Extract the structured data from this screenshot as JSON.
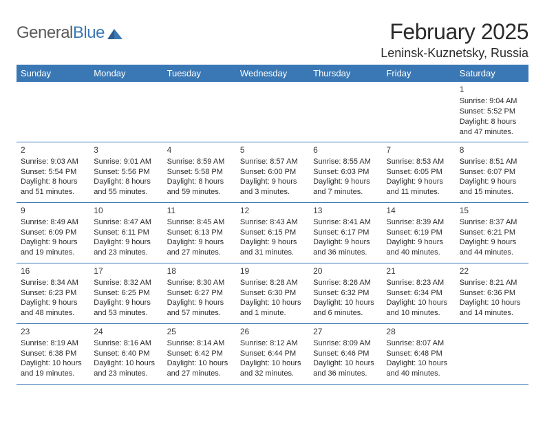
{
  "brand": {
    "name_a": "General",
    "name_b": "Blue"
  },
  "title": "February 2025",
  "location": "Leninsk-Kuznetsky, Russia",
  "colors": {
    "header_bg": "#3a78b5",
    "header_text": "#ffffff",
    "rule": "#3a78b5",
    "body_text": "#2b2b2b",
    "page_bg": "#ffffff"
  },
  "day_headers": [
    "Sunday",
    "Monday",
    "Tuesday",
    "Wednesday",
    "Thursday",
    "Friday",
    "Saturday"
  ],
  "weeks": [
    [
      null,
      null,
      null,
      null,
      null,
      null,
      {
        "n": "1",
        "sr": "Sunrise: 9:04 AM",
        "ss": "Sunset: 5:52 PM",
        "d1": "Daylight: 8 hours",
        "d2": "and 47 minutes."
      }
    ],
    [
      {
        "n": "2",
        "sr": "Sunrise: 9:03 AM",
        "ss": "Sunset: 5:54 PM",
        "d1": "Daylight: 8 hours",
        "d2": "and 51 minutes."
      },
      {
        "n": "3",
        "sr": "Sunrise: 9:01 AM",
        "ss": "Sunset: 5:56 PM",
        "d1": "Daylight: 8 hours",
        "d2": "and 55 minutes."
      },
      {
        "n": "4",
        "sr": "Sunrise: 8:59 AM",
        "ss": "Sunset: 5:58 PM",
        "d1": "Daylight: 8 hours",
        "d2": "and 59 minutes."
      },
      {
        "n": "5",
        "sr": "Sunrise: 8:57 AM",
        "ss": "Sunset: 6:00 PM",
        "d1": "Daylight: 9 hours",
        "d2": "and 3 minutes."
      },
      {
        "n": "6",
        "sr": "Sunrise: 8:55 AM",
        "ss": "Sunset: 6:03 PM",
        "d1": "Daylight: 9 hours",
        "d2": "and 7 minutes."
      },
      {
        "n": "7",
        "sr": "Sunrise: 8:53 AM",
        "ss": "Sunset: 6:05 PM",
        "d1": "Daylight: 9 hours",
        "d2": "and 11 minutes."
      },
      {
        "n": "8",
        "sr": "Sunrise: 8:51 AM",
        "ss": "Sunset: 6:07 PM",
        "d1": "Daylight: 9 hours",
        "d2": "and 15 minutes."
      }
    ],
    [
      {
        "n": "9",
        "sr": "Sunrise: 8:49 AM",
        "ss": "Sunset: 6:09 PM",
        "d1": "Daylight: 9 hours",
        "d2": "and 19 minutes."
      },
      {
        "n": "10",
        "sr": "Sunrise: 8:47 AM",
        "ss": "Sunset: 6:11 PM",
        "d1": "Daylight: 9 hours",
        "d2": "and 23 minutes."
      },
      {
        "n": "11",
        "sr": "Sunrise: 8:45 AM",
        "ss": "Sunset: 6:13 PM",
        "d1": "Daylight: 9 hours",
        "d2": "and 27 minutes."
      },
      {
        "n": "12",
        "sr": "Sunrise: 8:43 AM",
        "ss": "Sunset: 6:15 PM",
        "d1": "Daylight: 9 hours",
        "d2": "and 31 minutes."
      },
      {
        "n": "13",
        "sr": "Sunrise: 8:41 AM",
        "ss": "Sunset: 6:17 PM",
        "d1": "Daylight: 9 hours",
        "d2": "and 36 minutes."
      },
      {
        "n": "14",
        "sr": "Sunrise: 8:39 AM",
        "ss": "Sunset: 6:19 PM",
        "d1": "Daylight: 9 hours",
        "d2": "and 40 minutes."
      },
      {
        "n": "15",
        "sr": "Sunrise: 8:37 AM",
        "ss": "Sunset: 6:21 PM",
        "d1": "Daylight: 9 hours",
        "d2": "and 44 minutes."
      }
    ],
    [
      {
        "n": "16",
        "sr": "Sunrise: 8:34 AM",
        "ss": "Sunset: 6:23 PM",
        "d1": "Daylight: 9 hours",
        "d2": "and 48 minutes."
      },
      {
        "n": "17",
        "sr": "Sunrise: 8:32 AM",
        "ss": "Sunset: 6:25 PM",
        "d1": "Daylight: 9 hours",
        "d2": "and 53 minutes."
      },
      {
        "n": "18",
        "sr": "Sunrise: 8:30 AM",
        "ss": "Sunset: 6:27 PM",
        "d1": "Daylight: 9 hours",
        "d2": "and 57 minutes."
      },
      {
        "n": "19",
        "sr": "Sunrise: 8:28 AM",
        "ss": "Sunset: 6:30 PM",
        "d1": "Daylight: 10 hours",
        "d2": "and 1 minute."
      },
      {
        "n": "20",
        "sr": "Sunrise: 8:26 AM",
        "ss": "Sunset: 6:32 PM",
        "d1": "Daylight: 10 hours",
        "d2": "and 6 minutes."
      },
      {
        "n": "21",
        "sr": "Sunrise: 8:23 AM",
        "ss": "Sunset: 6:34 PM",
        "d1": "Daylight: 10 hours",
        "d2": "and 10 minutes."
      },
      {
        "n": "22",
        "sr": "Sunrise: 8:21 AM",
        "ss": "Sunset: 6:36 PM",
        "d1": "Daylight: 10 hours",
        "d2": "and 14 minutes."
      }
    ],
    [
      {
        "n": "23",
        "sr": "Sunrise: 8:19 AM",
        "ss": "Sunset: 6:38 PM",
        "d1": "Daylight: 10 hours",
        "d2": "and 19 minutes."
      },
      {
        "n": "24",
        "sr": "Sunrise: 8:16 AM",
        "ss": "Sunset: 6:40 PM",
        "d1": "Daylight: 10 hours",
        "d2": "and 23 minutes."
      },
      {
        "n": "25",
        "sr": "Sunrise: 8:14 AM",
        "ss": "Sunset: 6:42 PM",
        "d1": "Daylight: 10 hours",
        "d2": "and 27 minutes."
      },
      {
        "n": "26",
        "sr": "Sunrise: 8:12 AM",
        "ss": "Sunset: 6:44 PM",
        "d1": "Daylight: 10 hours",
        "d2": "and 32 minutes."
      },
      {
        "n": "27",
        "sr": "Sunrise: 8:09 AM",
        "ss": "Sunset: 6:46 PM",
        "d1": "Daylight: 10 hours",
        "d2": "and 36 minutes."
      },
      {
        "n": "28",
        "sr": "Sunrise: 8:07 AM",
        "ss": "Sunset: 6:48 PM",
        "d1": "Daylight: 10 hours",
        "d2": "and 40 minutes."
      },
      null
    ]
  ]
}
